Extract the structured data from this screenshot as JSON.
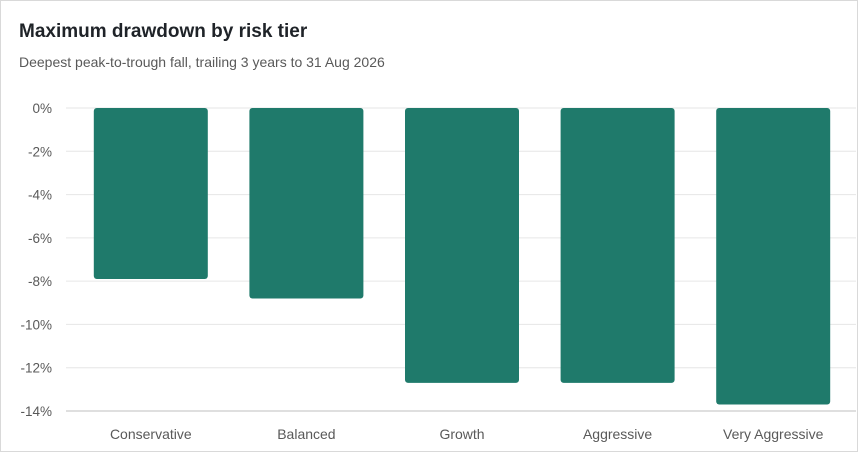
{
  "chart_data": {
    "type": "bar",
    "title": "Maximum drawdown by risk tier",
    "subtitle": "Deepest peak-to-trough fall, trailing 3 years to 31 Aug 2026",
    "xlabel": "",
    "ylabel": "",
    "categories": [
      "Conservative",
      "Balanced",
      "Growth",
      "Aggressive",
      "Very Aggressive"
    ],
    "values": [
      -7.9,
      -8.8,
      -12.7,
      -12.7,
      -13.7
    ],
    "ylim": [
      -14,
      0
    ],
    "yticks": [
      0,
      -2,
      -4,
      -6,
      -8,
      -10,
      -12,
      -14
    ],
    "ytick_labels": [
      "0%",
      "-2%",
      "-4%",
      "-6%",
      "-8%",
      "-10%",
      "-12%",
      "-14%"
    ],
    "grid": true,
    "legend": "none",
    "bar_color": "#1f7a6b"
  }
}
